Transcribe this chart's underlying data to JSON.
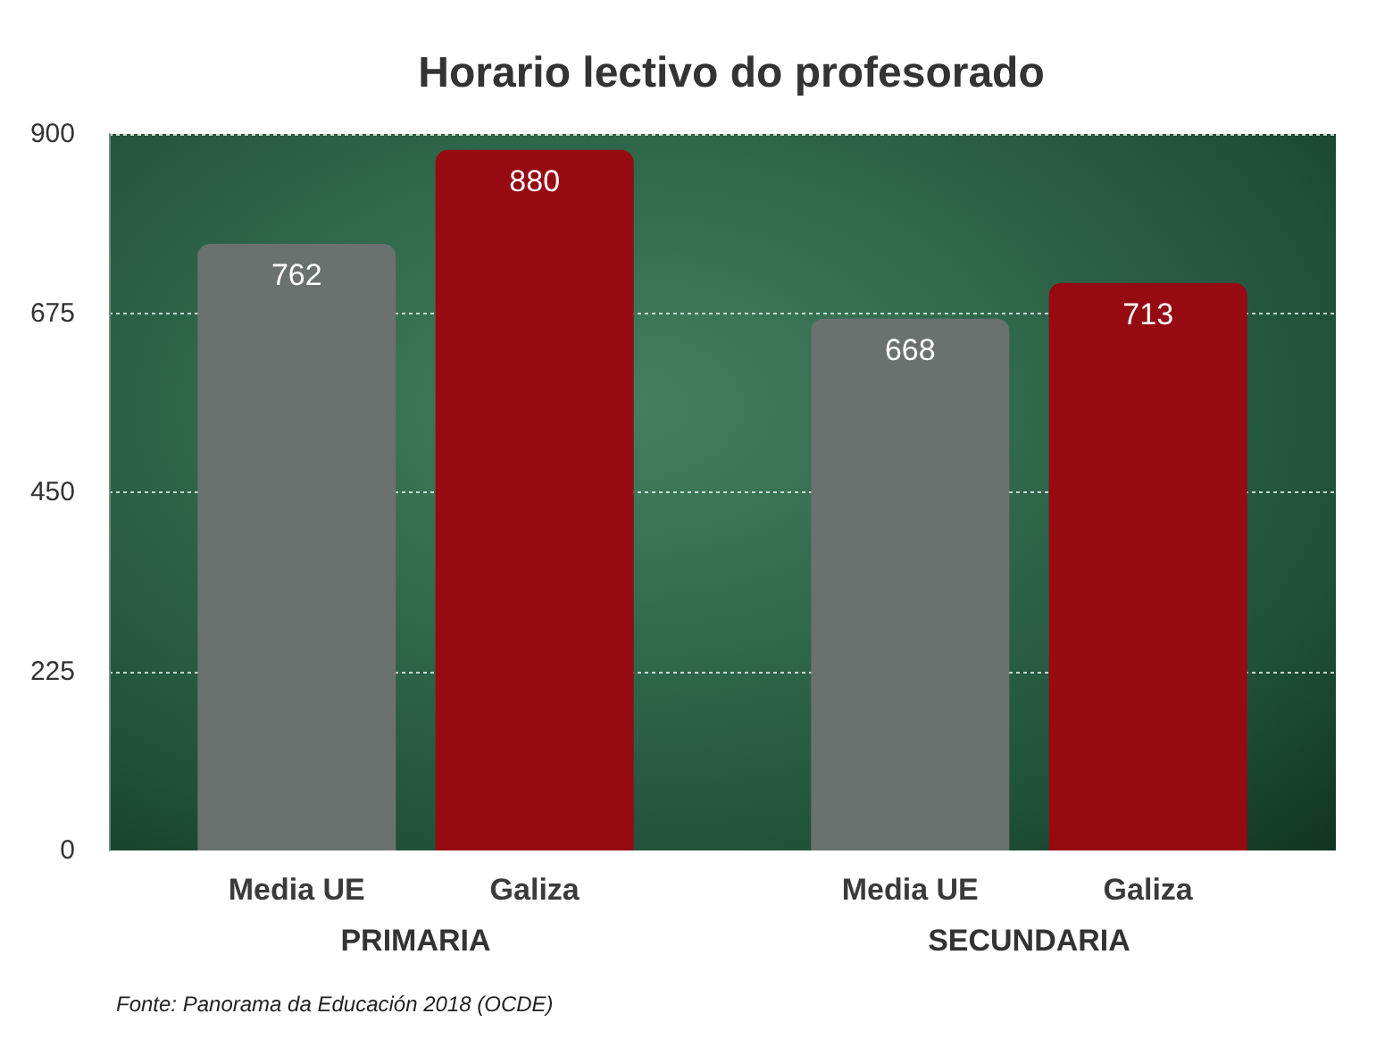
{
  "chart_data": {
    "type": "bar",
    "title": "Horario lectivo do profesorado",
    "categories": [
      "PRIMARIA",
      "SECUNDARIA"
    ],
    "series": [
      {
        "name": "Media UE",
        "color": "#6b716e",
        "values": [
          762,
          668
        ]
      },
      {
        "name": "Galiza",
        "color": "#960a12",
        "values": [
          880,
          713
        ]
      }
    ],
    "ylim": [
      0,
      900
    ],
    "yticks": [
      0,
      225,
      450,
      675,
      900
    ],
    "grid": "y",
    "data_labels": true,
    "annotations": [
      "Fonte: Panorama da Educación 2018 (OCDE)"
    ]
  }
}
